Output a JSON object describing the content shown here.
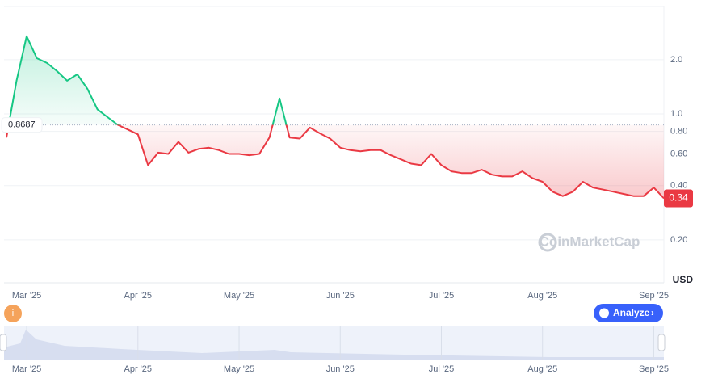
{
  "chart_data": {
    "type": "line",
    "categories": [
      null,
      null,
      "Mar '25",
      null,
      null,
      null,
      null,
      null,
      null,
      null,
      null,
      null,
      null,
      "Apr '25",
      null,
      null,
      null,
      null,
      null,
      null,
      null,
      null,
      null,
      "May '25",
      null,
      null,
      null,
      null,
      null,
      null,
      null,
      null,
      null,
      "Jun '25",
      null,
      null,
      null,
      null,
      null,
      null,
      null,
      null,
      null,
      "Jul '25",
      null,
      null,
      null,
      null,
      null,
      null,
      null,
      null,
      null,
      "Aug '25",
      null,
      null,
      null,
      null,
      null,
      null,
      null,
      null,
      null,
      null,
      "Sep '25",
      null
    ],
    "values": [
      0.74,
      1.53,
      2.7,
      2.04,
      1.92,
      1.73,
      1.53,
      1.66,
      1.38,
      1.06,
      0.96,
      0.87,
      0.82,
      0.77,
      0.52,
      0.61,
      0.6,
      0.7,
      0.61,
      0.64,
      0.65,
      0.63,
      0.6,
      0.6,
      0.59,
      0.6,
      0.74,
      1.22,
      0.74,
      0.73,
      0.84,
      0.78,
      0.73,
      0.65,
      0.63,
      0.62,
      0.63,
      0.63,
      0.59,
      0.56,
      0.53,
      0.52,
      0.6,
      0.52,
      0.48,
      0.47,
      0.47,
      0.49,
      0.46,
      0.45,
      0.45,
      0.48,
      0.44,
      0.42,
      0.37,
      0.35,
      0.37,
      0.42,
      0.39,
      0.38,
      0.37,
      0.36,
      0.35,
      0.35,
      0.39,
      0.34
    ],
    "baseline": 0.8687,
    "up_color": "#16c784",
    "down_color": "#ea3943",
    "log_scale": true,
    "grid": true,
    "ylim": [
      0.118,
      3.95
    ],
    "yticks": [
      {
        "value": 0.2,
        "label": "0.20"
      },
      {
        "value": 0.4,
        "label": "0.40"
      },
      {
        "value": 0.6,
        "label": "0.60"
      },
      {
        "value": 0.8,
        "label": "0.80"
      },
      {
        "value": 1,
        "label": "1.0"
      },
      {
        "value": 2,
        "label": "2.0"
      }
    ],
    "currency": "USD",
    "watermark": "CoinMarketCap",
    "button": "Analyze",
    "info_icon": "i"
  }
}
